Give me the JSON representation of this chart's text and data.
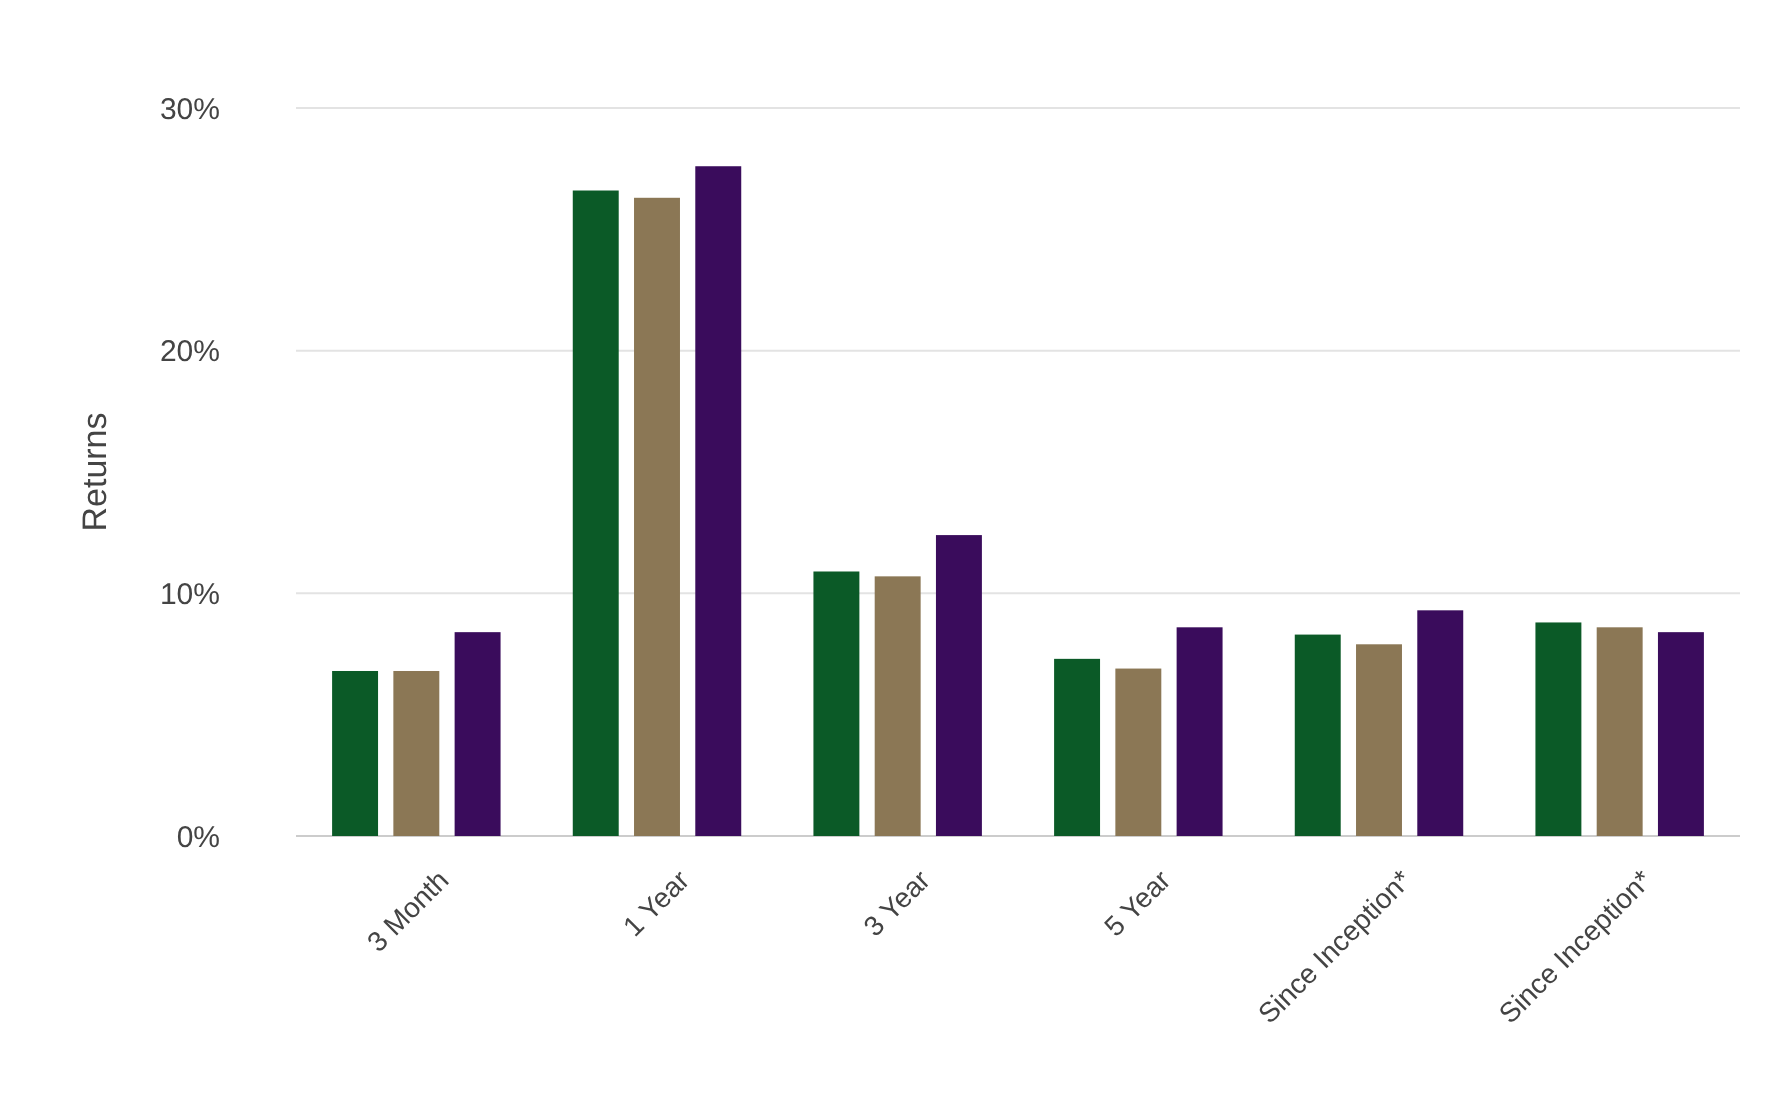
{
  "chart_data": {
    "type": "bar",
    "ylabel": "Returns",
    "categories": [
      "3 Month",
      "1 Year",
      "3 Year",
      "5 Year",
      "Since Inception*",
      "Since Inception*"
    ],
    "series": [
      {
        "color": "#0b5a27",
        "values": [
          6.8,
          26.6,
          10.9,
          7.3,
          8.3,
          8.8
        ]
      },
      {
        "color": "#8b7755",
        "values": [
          6.8,
          26.3,
          10.7,
          6.9,
          7.9,
          8.6
        ]
      },
      {
        "color": "#3a0c5c",
        "values": [
          8.4,
          27.6,
          12.4,
          8.6,
          9.3,
          8.4
        ]
      }
    ],
    "ylim": [
      0,
      30
    ],
    "yticks": [
      {
        "value": 0,
        "label": "0%"
      },
      {
        "value": 10,
        "label": "10%"
      },
      {
        "value": 20,
        "label": "20%"
      },
      {
        "value": 30,
        "label": "30%"
      }
    ],
    "grid": "y"
  }
}
